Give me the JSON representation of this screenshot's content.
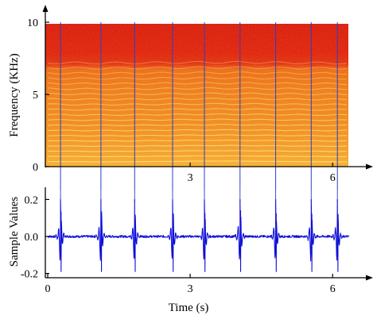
{
  "chart_data": [
    {
      "type": "heatmap",
      "title": "",
      "xlabel": "",
      "ylabel": "Frequency (KHz)",
      "xlim": [
        0,
        6.5
      ],
      "ylim": [
        0,
        10.5
      ],
      "x_ticks": [
        "3",
        "6"
      ],
      "y_ticks": [
        "0",
        "5",
        "10"
      ],
      "spectrogram": {
        "time_range": [
          0,
          6.3
        ],
        "freq_range": [
          0,
          10
        ],
        "colormap": [
          "#d40a0a",
          "#e83810",
          "#f07a18",
          "#f8c23a",
          "#fff07a"
        ],
        "harmonic_region_top_khz": 7.3,
        "harmonic_spacing_khz": 0.36
      },
      "marker_times": [
        0.27,
        1.12,
        1.83,
        2.63,
        3.3,
        4.05,
        4.8,
        5.55,
        6.1
      ]
    },
    {
      "type": "line",
      "title": "",
      "xlabel": "Time (s)",
      "ylabel": "Sample Values",
      "xlim": [
        0,
        6.5
      ],
      "ylim": [
        -0.23,
        0.26
      ],
      "x_ticks": [
        "0",
        "3",
        "6"
      ],
      "y_ticks": [
        "0.2",
        "0.0",
        "-0.2"
      ],
      "series": [
        {
          "color": "#1010d8",
          "baseline": 0.0,
          "pulse_times": [
            0.27,
            1.12,
            1.83,
            2.63,
            3.3,
            4.05,
            4.8,
            5.55,
            6.1
          ],
          "pulse_peaks": [
            0.2,
            0.2,
            0.2,
            0.2,
            0.2,
            0.2,
            0.2,
            0.2,
            0.2
          ],
          "pulse_troughs": [
            -0.19,
            -0.19,
            -0.19,
            -0.19,
            -0.19,
            -0.19,
            -0.19,
            -0.19,
            -0.19
          ],
          "x_end": 6.35
        }
      ]
    }
  ]
}
